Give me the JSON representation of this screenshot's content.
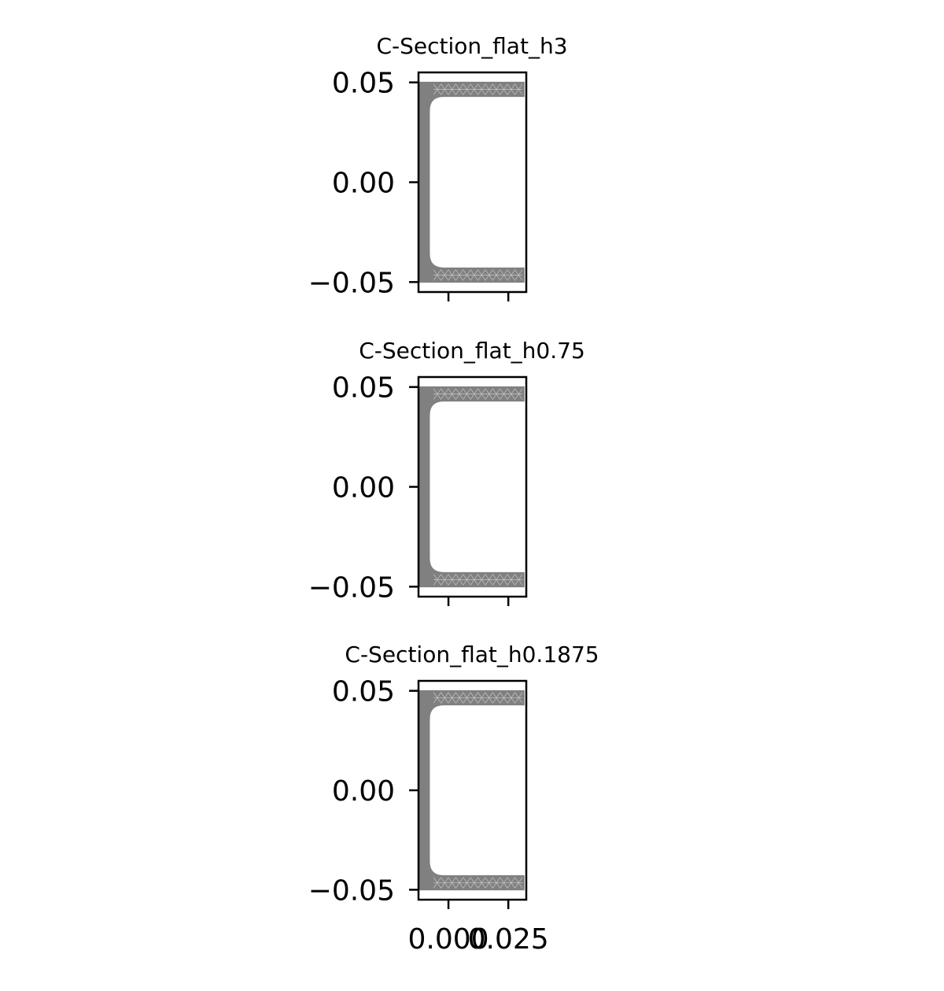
{
  "chart_data": [
    {
      "type": "mesh",
      "title": "C-Section_flat_h3",
      "ylim": [
        -0.055,
        0.055
      ],
      "xlim": [
        -0.0125,
        0.0325
      ],
      "yticks": [
        0.05,
        0.0,
        -0.05
      ],
      "ytick_labels": [
        "0.05",
        "0.00",
        "−0.05"
      ],
      "xticks": [
        0.0,
        0.025
      ],
      "xtick_labels": [],
      "mesh_color": "#808080",
      "shape": {
        "y_outer": 0.05,
        "x_outer": -0.012,
        "x_flange_end": 0.0315,
        "flange_thickness": 0.007,
        "web_thickness": 0.004,
        "fillet_radius": 0.006
      }
    },
    {
      "type": "mesh",
      "title": "C-Section_flat_h0.75",
      "ylim": [
        -0.055,
        0.055
      ],
      "xlim": [
        -0.0125,
        0.0325
      ],
      "yticks": [
        0.05,
        0.0,
        -0.05
      ],
      "ytick_labels": [
        "0.05",
        "0.00",
        "−0.05"
      ],
      "xticks": [
        0.0,
        0.025
      ],
      "xtick_labels": [],
      "mesh_color": "#808080",
      "shape": {
        "y_outer": 0.05,
        "x_outer": -0.012,
        "x_flange_end": 0.0315,
        "flange_thickness": 0.007,
        "web_thickness": 0.004,
        "fillet_radius": 0.006
      }
    },
    {
      "type": "mesh",
      "title": "C-Section_flat_h0.1875",
      "ylim": [
        -0.055,
        0.055
      ],
      "xlim": [
        -0.0125,
        0.0325
      ],
      "yticks": [
        0.05,
        0.0,
        -0.05
      ],
      "ytick_labels": [
        "0.05",
        "0.00",
        "−0.05"
      ],
      "xticks": [
        0.0,
        0.025
      ],
      "xtick_labels": [
        "0.000",
        "0.025"
      ],
      "mesh_color": "#808080",
      "shape": {
        "y_outer": 0.05,
        "x_outer": -0.012,
        "x_flange_end": 0.0315,
        "flange_thickness": 0.007,
        "web_thickness": 0.004,
        "fillet_radius": 0.006
      }
    }
  ]
}
